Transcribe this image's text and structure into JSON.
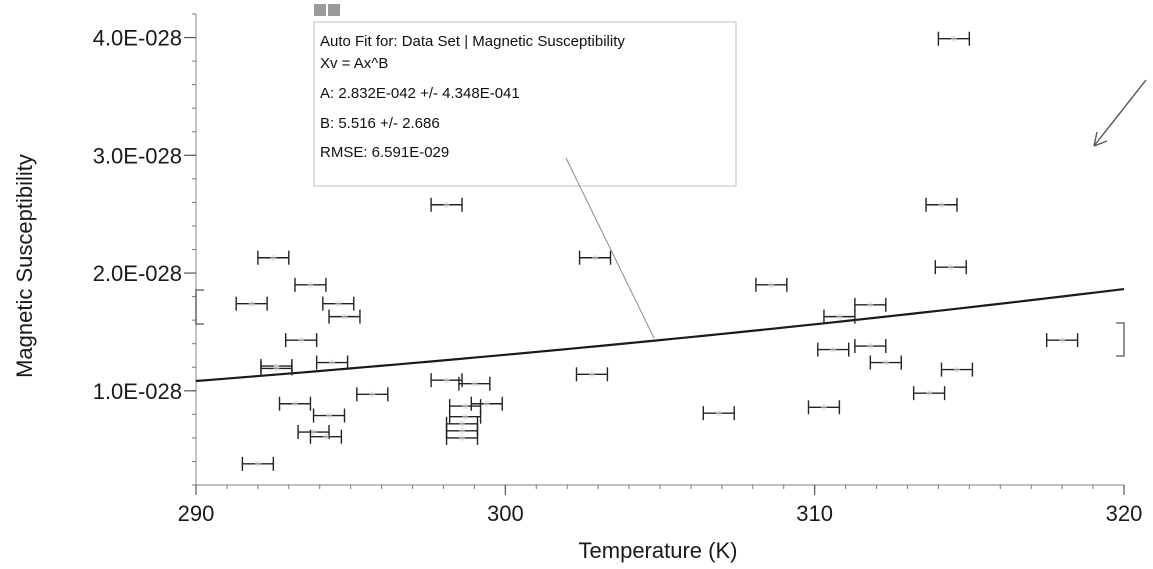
{
  "chart_data": {
    "type": "scatter",
    "title": "",
    "xlabel": "Temperature (K)",
    "ylabel": "Magnetic Susceptibility",
    "xlim": [
      290,
      320
    ],
    "ylim": [
      2e-29,
      4.2e-28
    ],
    "x_ticks": [
      290,
      300,
      310,
      320
    ],
    "x_tick_labels": [
      "290",
      "300",
      "310",
      "320"
    ],
    "y_ticks": [
      1e-28,
      2e-28,
      3e-28,
      4e-28
    ],
    "y_tick_labels": [
      "1.0E-028",
      "2.0E-028",
      "3.0E-028",
      "4.0E-028"
    ],
    "grid": false,
    "x_error": 0.5,
    "points": [
      {
        "x": 292.5,
        "y": 2.13e-28
      },
      {
        "x": 291.8,
        "y": 1.74e-28
      },
      {
        "x": 293.7,
        "y": 1.9e-28
      },
      {
        "x": 294.6,
        "y": 1.74e-28
      },
      {
        "x": 294.8,
        "y": 1.63e-28
      },
      {
        "x": 293.4,
        "y": 1.43e-28
      },
      {
        "x": 292.6,
        "y": 1.21e-28
      },
      {
        "x": 292.6,
        "y": 1.19e-28
      },
      {
        "x": 294.4,
        "y": 1.24e-28
      },
      {
        "x": 295.7,
        "y": 9.7e-29
      },
      {
        "x": 293.2,
        "y": 8.9e-29
      },
      {
        "x": 294.3,
        "y": 7.9e-29
      },
      {
        "x": 293.8,
        "y": 6.5e-29
      },
      {
        "x": 294.2,
        "y": 6.1e-29
      },
      {
        "x": 292.0,
        "y": 3.8e-29
      },
      {
        "x": 298.1,
        "y": 2.58e-28
      },
      {
        "x": 298.1,
        "y": 1.09e-28
      },
      {
        "x": 299.0,
        "y": 1.06e-28
      },
      {
        "x": 299.4,
        "y": 8.9e-29
      },
      {
        "x": 298.7,
        "y": 8.7e-29
      },
      {
        "x": 298.7,
        "y": 7.8e-29
      },
      {
        "x": 298.6,
        "y": 7.2e-29
      },
      {
        "x": 298.6,
        "y": 6.6e-29
      },
      {
        "x": 298.6,
        "y": 6e-29
      },
      {
        "x": 302.9,
        "y": 2.13e-28
      },
      {
        "x": 302.8,
        "y": 1.14e-28
      },
      {
        "x": 306.9,
        "y": 8.1e-29
      },
      {
        "x": 308.6,
        "y": 1.9e-28
      },
      {
        "x": 310.3,
        "y": 8.6e-29
      },
      {
        "x": 310.8,
        "y": 1.63e-28
      },
      {
        "x": 310.6,
        "y": 1.35e-28
      },
      {
        "x": 311.8,
        "y": 1.73e-28
      },
      {
        "x": 311.8,
        "y": 1.38e-28
      },
      {
        "x": 312.3,
        "y": 1.24e-28
      },
      {
        "x": 313.7,
        "y": 9.8e-29
      },
      {
        "x": 314.1,
        "y": 2.58e-28
      },
      {
        "x": 314.5,
        "y": 3.99e-28
      },
      {
        "x": 314.4,
        "y": 2.05e-28
      },
      {
        "x": 314.6,
        "y": 1.18e-28
      },
      {
        "x": 318.0,
        "y": 1.43e-28
      }
    ],
    "fit": {
      "model": "power",
      "A": 2.832e-42,
      "B": 5.516
    },
    "fit_box": {
      "lines": [
        "Auto Fit for: Data Set | Magnetic Susceptibility",
        "Xv = Ax^B",
        "A: 2.832E-042 +/- 4.348E-041",
        "B: 5.516 +/- 2.686",
        "RMSE: 6.591E-029"
      ]
    }
  }
}
